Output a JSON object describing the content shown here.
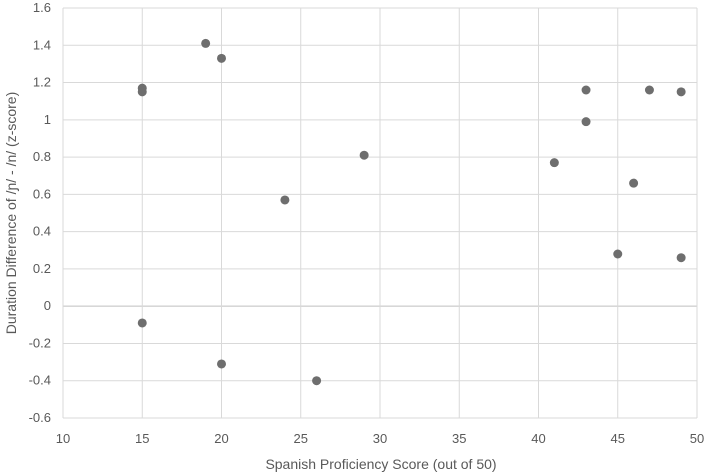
{
  "chart_data": {
    "type": "scatter",
    "title": "",
    "xlabel": "Spanish Proficiency Score (out of 50)",
    "ylabel": "Duration Difference of /ɲ/ - /n/ (z-score)",
    "xlim": [
      10,
      50
    ],
    "ylim": [
      -0.6,
      1.6
    ],
    "xticks": [
      10,
      15,
      20,
      25,
      30,
      35,
      40,
      45,
      50
    ],
    "yticks": [
      -0.6,
      -0.4,
      -0.2,
      0,
      0.2,
      0.4,
      0.6,
      0.8,
      1,
      1.2,
      1.4,
      1.6
    ],
    "grid": true,
    "marker_color": "#6e6e6e",
    "points": [
      {
        "x": 15,
        "y": 1.17
      },
      {
        "x": 15,
        "y": 1.15
      },
      {
        "x": 15,
        "y": -0.09
      },
      {
        "x": 19,
        "y": 1.41
      },
      {
        "x": 20,
        "y": 1.33
      },
      {
        "x": 20,
        "y": -0.31
      },
      {
        "x": 24,
        "y": 0.57
      },
      {
        "x": 26,
        "y": -0.4
      },
      {
        "x": 29,
        "y": 0.81
      },
      {
        "x": 41,
        "y": 0.77
      },
      {
        "x": 43,
        "y": 1.16
      },
      {
        "x": 43,
        "y": 0.99
      },
      {
        "x": 45,
        "y": 0.28
      },
      {
        "x": 46,
        "y": 0.66
      },
      {
        "x": 47,
        "y": 1.16
      },
      {
        "x": 49,
        "y": 1.15
      },
      {
        "x": 49,
        "y": 0.26
      }
    ]
  }
}
